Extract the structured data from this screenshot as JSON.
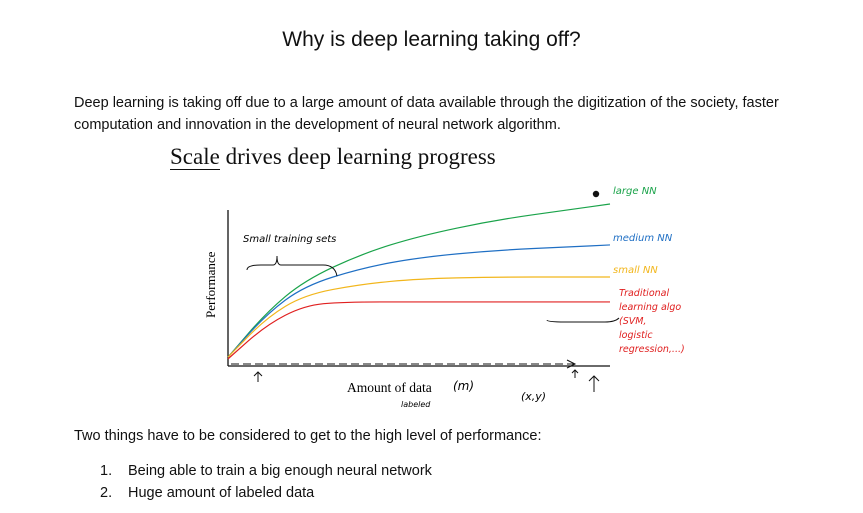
{
  "document": {
    "title": "Why is deep learning taking off?",
    "intro": "Deep learning is taking off due to a large amount of data available through the digitization of the society, faster computation and innovation in the development of neural network algorithm.",
    "section_heading": "Two things have to be considered to get to the high level of performance:",
    "points": [
      {
        "num": "1.",
        "text": "Being able to train a big enough neural network"
      },
      {
        "num": "2.",
        "text": "Huge amount of labeled data"
      }
    ]
  },
  "chart_data": {
    "type": "line",
    "title_part1": "Scale",
    "title_part2": " drives deep learning progress",
    "xlabel": "Amount of data",
    "xlabel_note_m": "(m)",
    "xlabel_note_labeled": "labeled",
    "xlabel_note_xy": "(x,y)",
    "ylabel": "Performance",
    "annotation_small_sets": "Small training sets",
    "series": [
      {
        "name": "large NN",
        "color": "#1aa34a",
        "label_color": "#1aa34a",
        "x": [
          0,
          0.1,
          0.2,
          0.35,
          0.5,
          0.7,
          0.9,
          1.0
        ],
        "y": [
          0.05,
          0.3,
          0.48,
          0.63,
          0.73,
          0.82,
          0.88,
          0.91
        ]
      },
      {
        "name": "medium NN",
        "color": "#1f6fc4",
        "label_color": "#1f6fc4",
        "x": [
          0,
          0.1,
          0.2,
          0.35,
          0.5,
          0.7,
          0.9,
          1.0
        ],
        "y": [
          0.05,
          0.29,
          0.45,
          0.55,
          0.61,
          0.65,
          0.67,
          0.68
        ]
      },
      {
        "name": "small NN",
        "color": "#f2b61c",
        "label_color": "#f2b61c",
        "x": [
          0,
          0.1,
          0.2,
          0.35,
          0.5,
          0.7,
          0.9,
          1.0
        ],
        "y": [
          0.05,
          0.27,
          0.4,
          0.46,
          0.49,
          0.5,
          0.5,
          0.5
        ]
      },
      {
        "name": "Traditional learning algo (SVM, logistic regression,...)",
        "color": "#e02020",
        "label_color": "#e02020",
        "x": [
          0,
          0.1,
          0.2,
          0.3,
          0.5,
          0.7,
          0.9,
          1.0
        ],
        "y": [
          0.04,
          0.23,
          0.34,
          0.36,
          0.36,
          0.36,
          0.36,
          0.36
        ]
      }
    ],
    "xlim": [
      0,
      1
    ],
    "ylim": [
      0,
      1
    ],
    "grid": false,
    "legend": "right"
  }
}
